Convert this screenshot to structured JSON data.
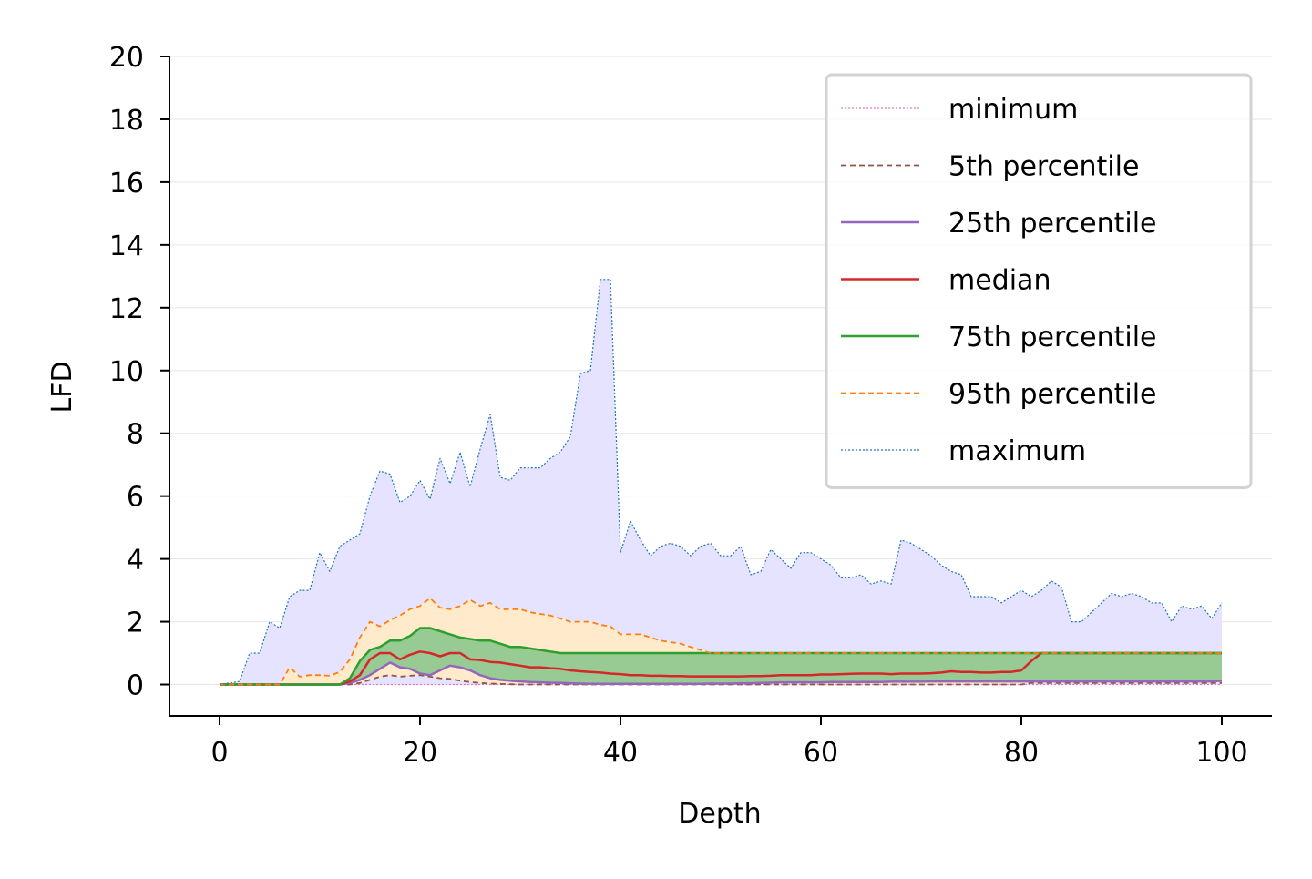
{
  "chart_data": {
    "type": "line",
    "title": "",
    "xlabel": "Depth",
    "ylabel": "LFD",
    "xlim": [
      -5,
      105
    ],
    "ylim": [
      -1,
      20
    ],
    "xticks": [
      0,
      20,
      40,
      60,
      80,
      100
    ],
    "yticks": [
      0,
      2,
      4,
      6,
      8,
      10,
      12,
      14,
      16,
      18,
      20
    ],
    "grid": "horizontal",
    "legend_position": "upper right",
    "x": [
      0,
      1,
      2,
      3,
      4,
      5,
      6,
      7,
      8,
      9,
      10,
      11,
      12,
      13,
      14,
      15,
      16,
      17,
      18,
      19,
      20,
      21,
      22,
      23,
      24,
      25,
      26,
      27,
      28,
      29,
      30,
      31,
      32,
      33,
      34,
      35,
      36,
      37,
      38,
      39,
      40,
      41,
      42,
      43,
      44,
      45,
      46,
      47,
      48,
      49,
      50,
      51,
      52,
      53,
      54,
      55,
      56,
      57,
      58,
      59,
      60,
      61,
      62,
      63,
      64,
      65,
      66,
      67,
      68,
      69,
      70,
      71,
      72,
      73,
      74,
      75,
      76,
      77,
      78,
      79,
      80,
      81,
      82,
      83,
      84,
      85,
      86,
      87,
      88,
      89,
      90,
      91,
      92,
      93,
      94,
      95,
      96,
      97,
      98,
      99,
      100
    ],
    "series": [
      {
        "name": "minimum",
        "color": "#e377c2",
        "dash": "dotted",
        "values": [
          0,
          0,
          0,
          0,
          0,
          0,
          0,
          0,
          0,
          0,
          0,
          0,
          0,
          0,
          0,
          0,
          0,
          0,
          0,
          0,
          0,
          0,
          0,
          0,
          0,
          0,
          0,
          0,
          0,
          0,
          0,
          0,
          0,
          0,
          0,
          0,
          0,
          0,
          0,
          0,
          0,
          0,
          0,
          0,
          0,
          0,
          0,
          0,
          0,
          0,
          0,
          0,
          0,
          0,
          0,
          0,
          0,
          0,
          0,
          0,
          0,
          0,
          0,
          0,
          0,
          0,
          0,
          0,
          0,
          0,
          0,
          0,
          0,
          0,
          0,
          0,
          0,
          0,
          0,
          0,
          0,
          0,
          0,
          0,
          0,
          0,
          0,
          0,
          0,
          0,
          0,
          0,
          0,
          0,
          0,
          0,
          0,
          0,
          0,
          0,
          0
        ]
      },
      {
        "name": " 5th percentile",
        "color": "#8c564b",
        "dash": "dashed",
        "values": [
          0,
          0,
          0,
          0,
          0,
          0,
          0,
          0,
          0,
          0,
          0,
          0,
          0,
          0,
          0.05,
          0.15,
          0.25,
          0.3,
          0.25,
          0.28,
          0.3,
          0.25,
          0.2,
          0.18,
          0.12,
          0.08,
          0.05,
          0.03,
          0.02,
          0.01,
          0,
          0,
          0,
          0,
          0,
          0,
          0,
          0,
          0,
          0,
          0,
          0,
          0,
          0,
          0,
          0,
          0,
          0,
          0,
          0,
          0,
          0,
          0,
          0,
          0,
          0,
          0,
          0,
          0,
          0,
          0,
          0,
          0,
          0,
          0,
          0,
          0,
          0,
          0,
          0,
          0,
          0,
          0,
          0,
          0,
          0,
          0,
          0,
          0,
          0,
          0,
          0.05,
          0.05,
          0.05,
          0.05,
          0.05,
          0.05,
          0.05,
          0.05,
          0.05,
          0.05,
          0.05,
          0.05,
          0.05,
          0.05,
          0.05,
          0.05,
          0.05,
          0.05,
          0.05,
          0.05
        ]
      },
      {
        "name": "25th percentile",
        "color": "#9467bd",
        "dash": "solid",
        "values": [
          0,
          0,
          0,
          0,
          0,
          0,
          0,
          0,
          0,
          0,
          0,
          0,
          0,
          0.05,
          0.15,
          0.3,
          0.5,
          0.7,
          0.55,
          0.5,
          0.35,
          0.3,
          0.45,
          0.6,
          0.55,
          0.45,
          0.3,
          0.2,
          0.15,
          0.12,
          0.1,
          0.08,
          0.07,
          0.06,
          0.05,
          0.04,
          0.03,
          0.02,
          0.02,
          0.02,
          0.02,
          0.02,
          0.02,
          0.02,
          0.02,
          0.02,
          0.02,
          0.02,
          0.02,
          0.03,
          0.03,
          0.03,
          0.04,
          0.04,
          0.05,
          0.06,
          0.07,
          0.07,
          0.07,
          0.07,
          0.07,
          0.08,
          0.08,
          0.08,
          0.08,
          0.08,
          0.08,
          0.09,
          0.09,
          0.09,
          0.09,
          0.1,
          0.1,
          0.1,
          0.1,
          0.1,
          0.1,
          0.1,
          0.1,
          0.1,
          0.1,
          0.1,
          0.1,
          0.1,
          0.1,
          0.1,
          0.1,
          0.1,
          0.1,
          0.1,
          0.1,
          0.1,
          0.1,
          0.1,
          0.1,
          0.1,
          0.1,
          0.1,
          0.1,
          0.1,
          0.12
        ]
      },
      {
        "name": "median",
        "color": "#d62728",
        "dash": "solid",
        "values": [
          0,
          0,
          0,
          0,
          0,
          0,
          0,
          0,
          0,
          0,
          0,
          0,
          0,
          0.1,
          0.3,
          0.8,
          1.0,
          1.0,
          0.8,
          0.95,
          1.05,
          1.0,
          0.9,
          1.0,
          1.0,
          0.8,
          0.78,
          0.72,
          0.7,
          0.65,
          0.6,
          0.55,
          0.55,
          0.52,
          0.5,
          0.45,
          0.42,
          0.4,
          0.38,
          0.35,
          0.33,
          0.3,
          0.3,
          0.28,
          0.28,
          0.27,
          0.27,
          0.26,
          0.26,
          0.26,
          0.26,
          0.26,
          0.26,
          0.27,
          0.27,
          0.28,
          0.3,
          0.3,
          0.3,
          0.3,
          0.32,
          0.32,
          0.33,
          0.34,
          0.35,
          0.35,
          0.35,
          0.33,
          0.35,
          0.35,
          0.35,
          0.36,
          0.38,
          0.42,
          0.4,
          0.4,
          0.38,
          0.38,
          0.4,
          0.4,
          0.45,
          0.75,
          1.0,
          1.0,
          1.0,
          1.0,
          1.0,
          1.0,
          1.0,
          1.0,
          1.0,
          1.0,
          1.0,
          1.0,
          1.0,
          1.0,
          1.0,
          1.0,
          1.0,
          1.0,
          1.0
        ]
      },
      {
        "name": "75th percentile",
        "color": "#2ca02c",
        "dash": "solid",
        "values": [
          0,
          0,
          0,
          0,
          0,
          0,
          0,
          0,
          0,
          0,
          0,
          0,
          0,
          0.2,
          0.75,
          1.1,
          1.2,
          1.4,
          1.4,
          1.55,
          1.8,
          1.8,
          1.7,
          1.6,
          1.5,
          1.45,
          1.4,
          1.4,
          1.3,
          1.2,
          1.2,
          1.15,
          1.1,
          1.05,
          1.0,
          1.0,
          1.0,
          1.0,
          1.0,
          1.0,
          1.0,
          1.0,
          1.0,
          1.0,
          1.0,
          1.0,
          1.0,
          1.0,
          1.0,
          1.0,
          1.0,
          1.0,
          1.0,
          1.0,
          1.0,
          1.0,
          1.0,
          1.0,
          1.0,
          1.0,
          1.0,
          1.0,
          1.0,
          1.0,
          1.0,
          1.0,
          1.0,
          1.0,
          1.0,
          1.0,
          1.0,
          1.0,
          1.0,
          1.0,
          1.0,
          1.0,
          1.0,
          1.0,
          1.0,
          1.0,
          1.0,
          1.0,
          1.0,
          1.0,
          1.0,
          1.0,
          1.0,
          1.0,
          1.0,
          1.0,
          1.0,
          1.0,
          1.0,
          1.0,
          1.0,
          1.0,
          1.0,
          1.0,
          1.0,
          1.0,
          1.0
        ]
      },
      {
        "name": "95th percentile",
        "color": "#ff7f0e",
        "dash": "dashed",
        "values": [
          0,
          0,
          0,
          0,
          0,
          0,
          0,
          0.55,
          0.25,
          0.3,
          0.3,
          0.28,
          0.4,
          0.8,
          1.5,
          2.0,
          1.85,
          2.05,
          2.2,
          2.4,
          2.5,
          2.75,
          2.45,
          2.4,
          2.5,
          2.7,
          2.5,
          2.6,
          2.4,
          2.4,
          2.4,
          2.3,
          2.25,
          2.2,
          2.1,
          2.0,
          2.0,
          2.0,
          1.9,
          1.85,
          1.6,
          1.6,
          1.6,
          1.5,
          1.4,
          1.35,
          1.3,
          1.2,
          1.1,
          1.0,
          1.0,
          1.0,
          1.0,
          1.0,
          1.0,
          1.0,
          1.0,
          1.0,
          1.0,
          1.0,
          1.0,
          1.0,
          1.0,
          1.0,
          1.0,
          1.0,
          1.0,
          1.0,
          1.0,
          1.0,
          1.0,
          1.0,
          1.0,
          1.0,
          1.0,
          1.0,
          1.0,
          1.0,
          1.0,
          1.0,
          1.0,
          1.0,
          1.0,
          1.0,
          1.0,
          1.0,
          1.0,
          1.0,
          1.0,
          1.0,
          1.0,
          1.0,
          1.0,
          1.0,
          1.0,
          1.0,
          1.0,
          1.0,
          1.0,
          1.0,
          1.0
        ]
      },
      {
        "name": "maximum",
        "color": "#1f77b4",
        "dash": "dotted",
        "values": [
          0,
          0.05,
          0.1,
          1.0,
          1.0,
          2.0,
          1.8,
          2.8,
          3.0,
          3.0,
          4.2,
          3.6,
          4.4,
          4.6,
          4.8,
          6.0,
          6.8,
          6.7,
          5.8,
          6.0,
          6.5,
          5.9,
          7.2,
          6.4,
          7.4,
          6.3,
          7.5,
          8.6,
          6.6,
          6.5,
          6.9,
          6.9,
          6.9,
          7.2,
          7.4,
          7.9,
          9.9,
          10.0,
          12.9,
          12.9,
          4.2,
          5.2,
          4.6,
          4.1,
          4.4,
          4.5,
          4.4,
          4.1,
          4.4,
          4.5,
          4.1,
          4.1,
          4.4,
          3.5,
          3.6,
          4.3,
          4.0,
          3.7,
          4.2,
          4.2,
          4.0,
          3.8,
          3.4,
          3.4,
          3.5,
          3.2,
          3.3,
          3.2,
          4.6,
          4.5,
          4.3,
          4.1,
          3.8,
          3.6,
          3.5,
          2.8,
          2.8,
          2.8,
          2.6,
          2.8,
          3.0,
          2.8,
          3.0,
          3.3,
          3.1,
          2.0,
          2.0,
          2.3,
          2.6,
          2.9,
          2.8,
          2.9,
          2.8,
          2.6,
          2.6,
          2.0,
          2.5,
          2.4,
          2.5,
          2.1,
          2.6
        ]
      }
    ],
    "fills": [
      {
        "between": [
          "minimum",
          "maximum"
        ],
        "color": "#e5e3ff"
      },
      {
        "between": [
          " 5th percentile",
          "95th percentile"
        ],
        "color": "#ffebcc"
      },
      {
        "between": [
          "25th percentile",
          "75th percentile"
        ],
        "color": "#98ca94"
      }
    ]
  }
}
